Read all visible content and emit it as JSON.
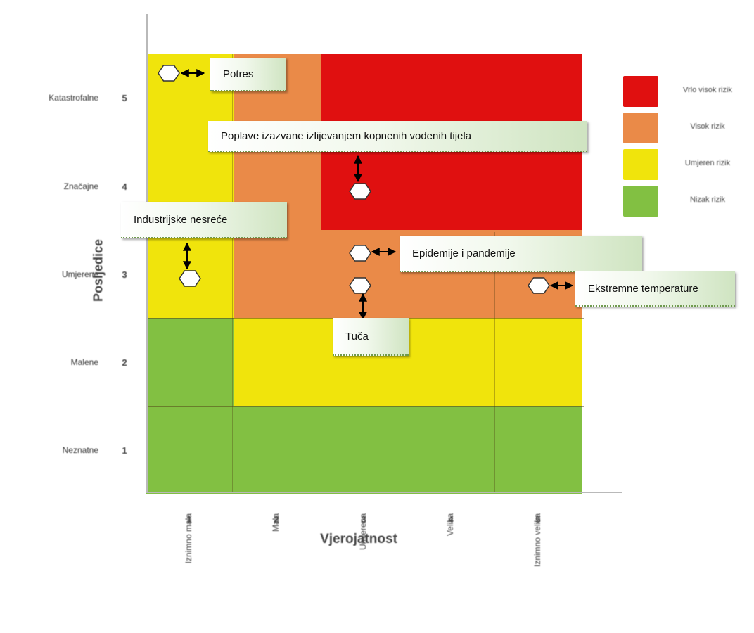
{
  "chart_data": {
    "type": "heatmap",
    "xlabel": "Vjerojatnost",
    "ylabel": "Posljedice",
    "x_categories": [
      "1",
      "2",
      "3",
      "4",
      "5"
    ],
    "x_words": [
      "Iznimno mala",
      "Mala",
      "Umjerena",
      "Velika",
      "Iznimno velika"
    ],
    "y_categories": [
      "1",
      "2",
      "3",
      "4",
      "5"
    ],
    "y_words": [
      "Neznatne",
      "Malene",
      "Umjerene",
      "Značajne",
      "Katastrofalne"
    ],
    "legend": [
      {
        "label": "Vrlo visok rizik",
        "color": "#e01010"
      },
      {
        "label": "Visok rizik",
        "color": "#ea8a48"
      },
      {
        "label": "Umjeren rizik",
        "color": "#f0e40c"
      },
      {
        "label": "Nizak rizik",
        "color": "#82c042"
      }
    ],
    "risk_matrix": [
      [
        "low",
        "low",
        "low",
        "low",
        "low"
      ],
      [
        "low",
        "moderate",
        "moderate",
        "moderate",
        "moderate"
      ],
      [
        "moderate",
        "high",
        "high",
        "high",
        "high"
      ],
      [
        "moderate",
        "high",
        "very_high",
        "very_high",
        "very_high"
      ],
      [
        "moderate",
        "high",
        "very_high",
        "very_high",
        "very_high"
      ]
    ],
    "risk_colors": {
      "low": "#82c042",
      "moderate": "#f0e40c",
      "high": "#ea8a48",
      "very_high": "#e01010"
    },
    "hazards": [
      {
        "name": "Potres",
        "x": 1,
        "y": 5
      },
      {
        "name": "Poplave izazvane izlijevanjem kopnenih vodenih tijela",
        "x": 3,
        "y": 4
      },
      {
        "name": "Industrijske nesreće",
        "x": 1,
        "y": 3
      },
      {
        "name": "Epidemije i pandemije",
        "x": 3,
        "y": 3
      },
      {
        "name": "Ekstremne temperature",
        "x": 5,
        "y": 3
      },
      {
        "name": "Tuča",
        "x": 3,
        "y": 3
      }
    ]
  }
}
